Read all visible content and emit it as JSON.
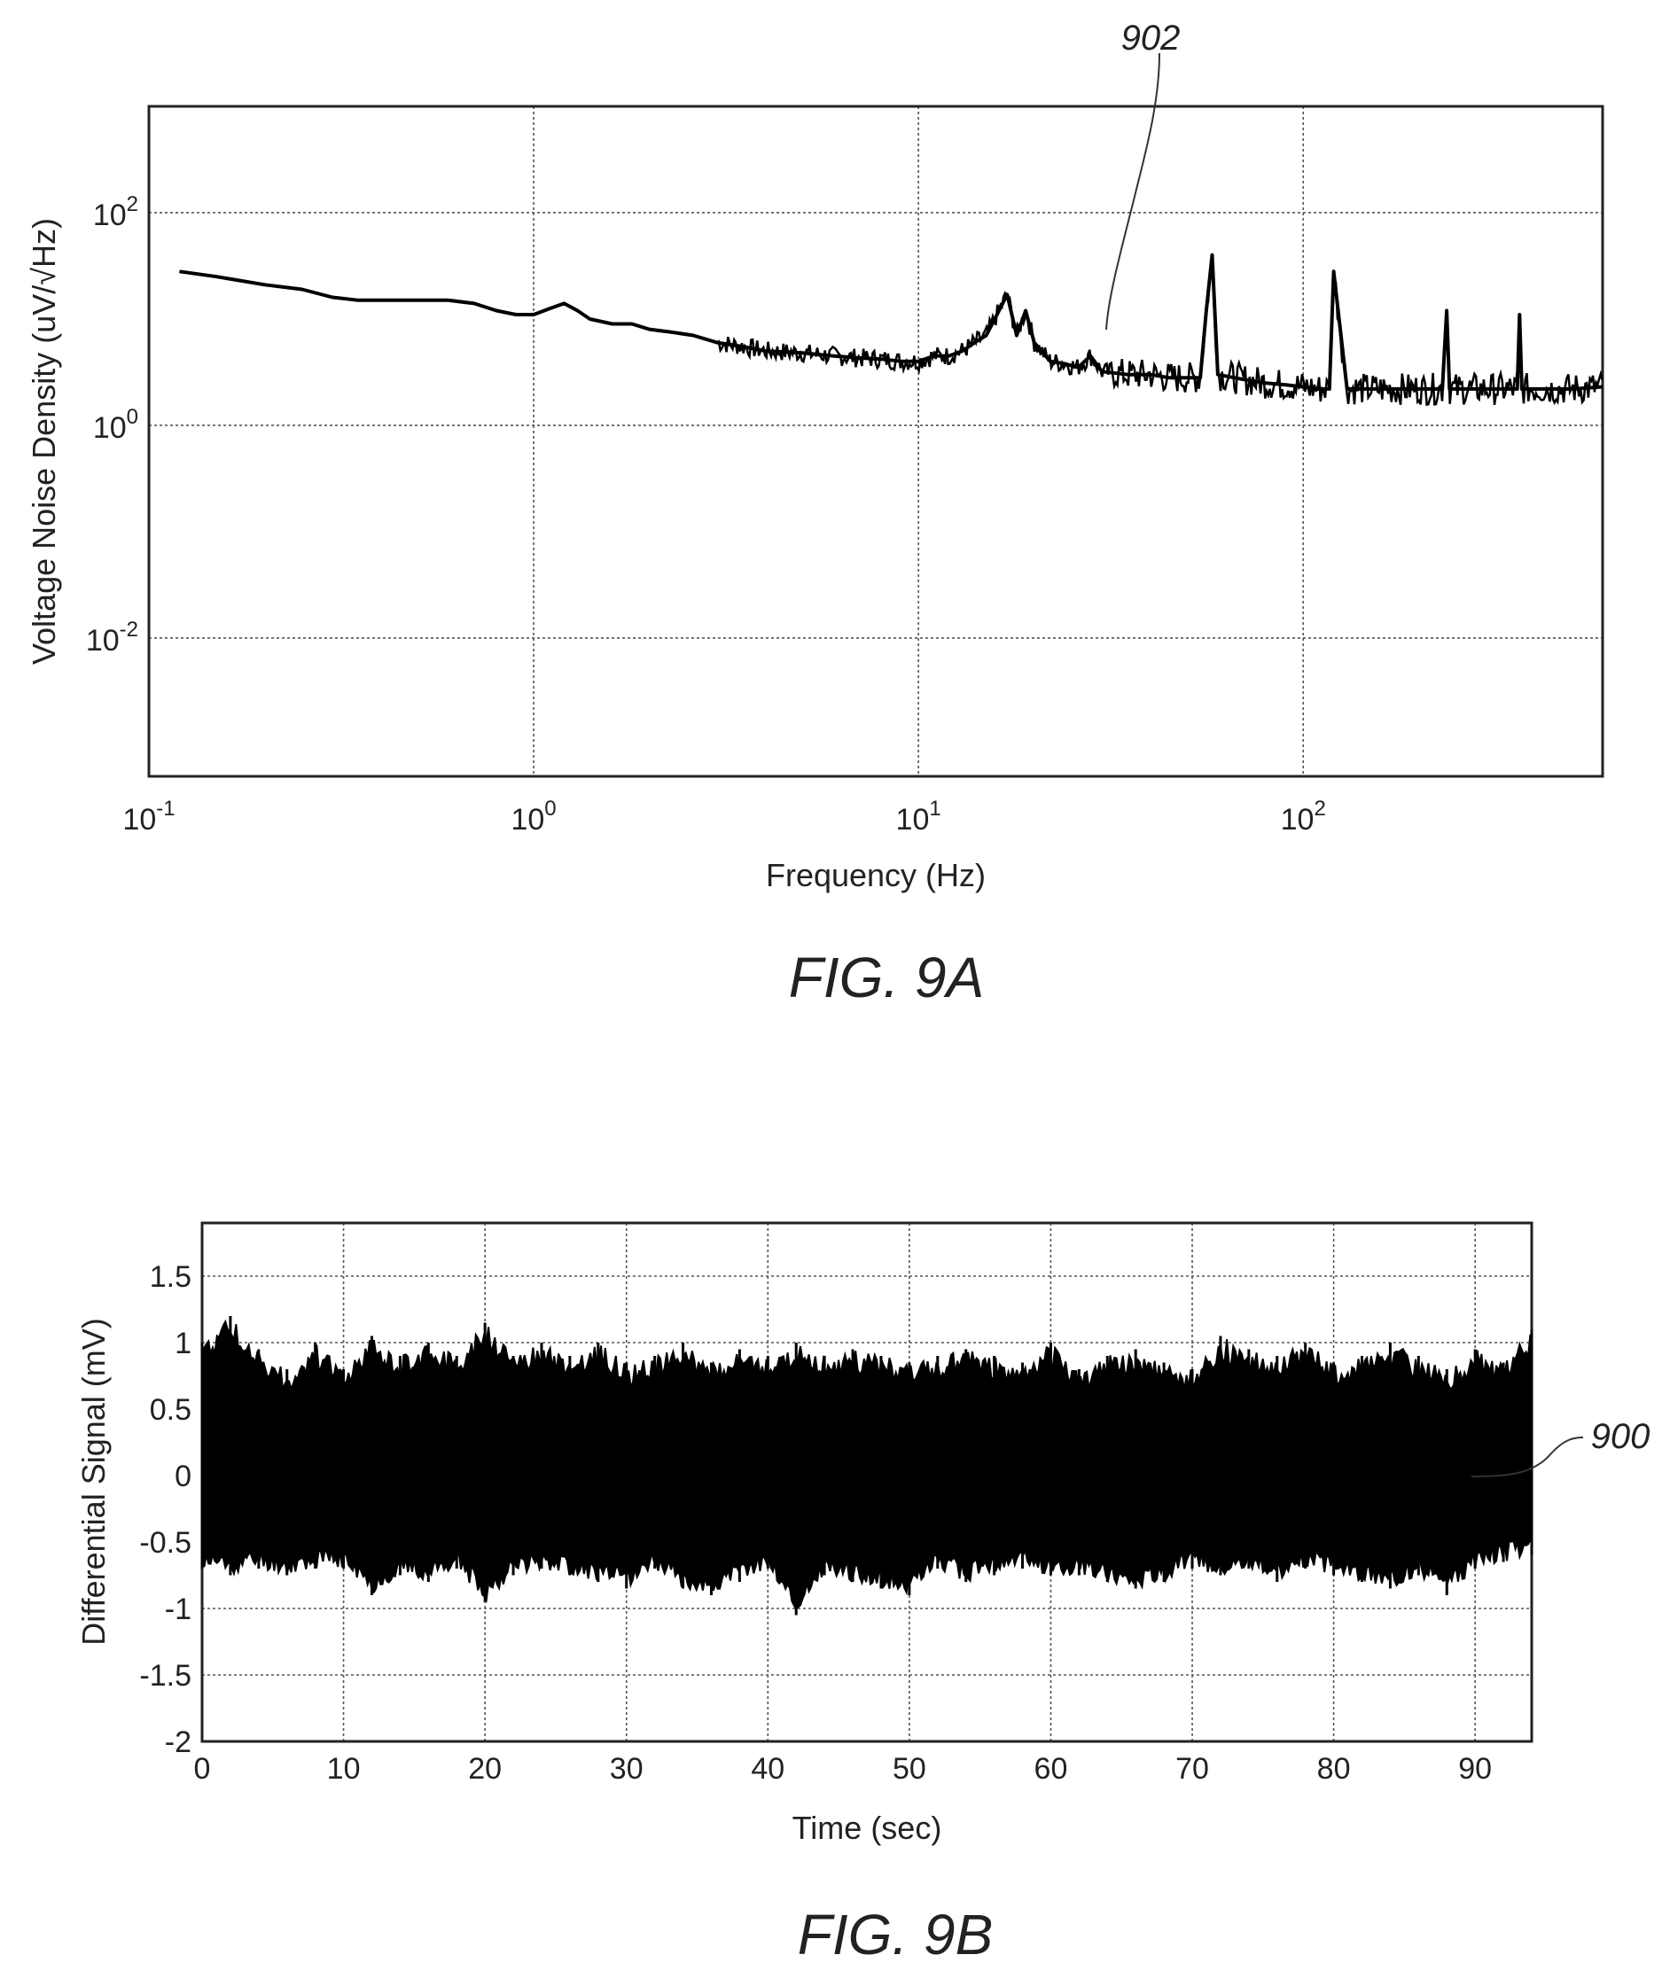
{
  "chart_data": [
    {
      "type": "line",
      "caption": "FIG. 9A",
      "xlabel": "Frequency (Hz)",
      "ylabel": "Voltage Noise Density (uV/√Hz)",
      "x_scale": "log",
      "y_scale": "log",
      "xlim": [
        0.1,
        600
      ],
      "ylim": [
        0.0005,
        1000
      ],
      "grid": true,
      "x_ticks": [
        {
          "value": 0.1,
          "base": "10",
          "exp": "-1"
        },
        {
          "value": 1,
          "base": "10",
          "exp": "0"
        },
        {
          "value": 10,
          "base": "10",
          "exp": "1"
        },
        {
          "value": 100,
          "base": "10",
          "exp": "2"
        }
      ],
      "y_ticks": [
        {
          "value": 100,
          "base": "10",
          "exp": "2"
        },
        {
          "value": 1,
          "base": "10",
          "exp": "0"
        },
        {
          "value": 0.01,
          "base": "10",
          "exp": "-2"
        }
      ],
      "reference_label": "902",
      "series": [
        {
          "x": [
            0.12,
            0.15,
            0.2,
            0.25,
            0.3,
            0.35,
            0.4,
            0.5,
            0.6,
            0.7,
            0.8,
            0.9,
            1.0,
            1.1,
            1.2,
            1.3,
            1.4,
            1.6,
            1.8,
            2.0,
            2.3,
            2.6,
            3.0,
            3.5,
            4.0,
            5.0,
            6.0,
            7.0,
            8.0,
            9.0,
            10,
            11,
            12,
            13,
            14,
            15,
            16,
            17,
            18,
            19,
            20,
            22,
            24,
            26,
            28,
            30,
            35,
            40,
            45,
            50,
            54,
            56,
            58,
            60,
            70,
            80,
            90,
            100,
            110,
            117,
            120,
            130,
            150,
            180,
            200,
            230,
            236,
            240,
            280,
            320,
            360,
            365,
            370,
            420,
            500,
            600
          ],
          "y": [
            28,
            25,
            21,
            19,
            16,
            15,
            15,
            15,
            15,
            14,
            12,
            11,
            11,
            12.5,
            14,
            12,
            10,
            9,
            9,
            8,
            7.5,
            7,
            6,
            5.5,
            5,
            4.8,
            4.5,
            4.3,
            4.2,
            4.0,
            4.0,
            4.5,
            4.5,
            5,
            6,
            7,
            11,
            17,
            7,
            12,
            6,
            4,
            3.8,
            3.5,
            4.5,
            3.2,
            3.0,
            3.0,
            2.8,
            2.8,
            2.8,
            12,
            40,
            3.0,
            2.7,
            2.5,
            2.4,
            2.3,
            2.2,
            2.2,
            28,
            2.2,
            2.2,
            2.2,
            2.2,
            2.2,
            12,
            2.2,
            2.2,
            2.2,
            2.2,
            11,
            2.2,
            2.2,
            2.2,
            2.3
          ]
        }
      ]
    },
    {
      "type": "line",
      "caption": "FIG. 9B",
      "xlabel": "Time (sec)",
      "ylabel": "Differential Signal (mV)",
      "xlim": [
        0,
        94
      ],
      "ylim": [
        -2,
        1.9
      ],
      "grid": true,
      "x_ticks": [
        {
          "value": 0,
          "label": "0"
        },
        {
          "value": 10,
          "label": "10"
        },
        {
          "value": 20,
          "label": "20"
        },
        {
          "value": 30,
          "label": "30"
        },
        {
          "value": 40,
          "label": "40"
        },
        {
          "value": 50,
          "label": "50"
        },
        {
          "value": 60,
          "label": "60"
        },
        {
          "value": 70,
          "label": "70"
        },
        {
          "value": 80,
          "label": "80"
        },
        {
          "value": 90,
          "label": "90"
        }
      ],
      "y_ticks": [
        {
          "value": 1.5,
          "label": "1.5"
        },
        {
          "value": 1,
          "label": "1"
        },
        {
          "value": 0.5,
          "label": "0.5"
        },
        {
          "value": 0,
          "label": "0"
        },
        {
          "value": -0.5,
          "label": "-0.5"
        },
        {
          "value": -1,
          "label": "-1"
        },
        {
          "value": -1.5,
          "label": "-1.5"
        },
        {
          "value": -2,
          "label": "-2"
        }
      ],
      "reference_label": "900",
      "series": [
        {
          "envelope_time": [
            0,
            2,
            4,
            6,
            8,
            10,
            12,
            14,
            16,
            18,
            20,
            22,
            24,
            26,
            28,
            30,
            32,
            34,
            36,
            38,
            40,
            42,
            44,
            46,
            48,
            50,
            52,
            54,
            56,
            58,
            60,
            62,
            64,
            66,
            68,
            70,
            72,
            74,
            76,
            78,
            80,
            82,
            84,
            86,
            88,
            90,
            92,
            94
          ],
          "upper": [
            1.0,
            1.2,
            0.95,
            0.8,
            1.0,
            0.8,
            1.05,
            0.9,
            1.0,
            0.9,
            1.15,
            0.9,
            1.0,
            0.9,
            1.0,
            0.85,
            0.9,
            1.0,
            0.85,
            0.95,
            0.9,
            1.0,
            0.9,
            0.95,
            0.9,
            0.85,
            0.9,
            0.95,
            0.9,
            0.85,
            1.0,
            0.8,
            0.9,
            0.95,
            0.85,
            0.8,
            1.05,
            0.95,
            0.9,
            1.0,
            0.85,
            0.9,
            1.0,
            0.9,
            0.8,
            0.95,
            0.85,
            1.1
          ],
          "lower": [
            -0.7,
            -0.75,
            -0.7,
            -0.75,
            -0.7,
            -0.7,
            -0.9,
            -0.75,
            -0.8,
            -0.7,
            -0.95,
            -0.75,
            -0.7,
            -0.75,
            -0.8,
            -0.85,
            -0.7,
            -0.85,
            -0.9,
            -0.8,
            -0.7,
            -1.05,
            -0.75,
            -0.8,
            -0.85,
            -0.9,
            -0.7,
            -0.8,
            -0.75,
            -0.7,
            -0.75,
            -0.75,
            -0.8,
            -0.85,
            -0.8,
            -0.7,
            -0.75,
            -0.7,
            -0.8,
            -0.7,
            -0.75,
            -0.8,
            -0.85,
            -0.75,
            -0.9,
            -0.7,
            -0.65,
            -0.6
          ]
        }
      ]
    }
  ]
}
